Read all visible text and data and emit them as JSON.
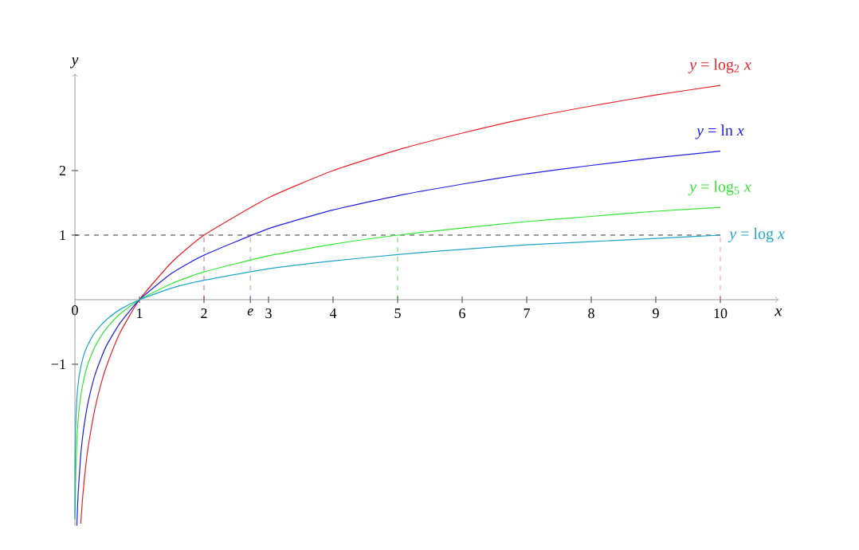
{
  "chart_data": {
    "type": "line",
    "xlabel": "x",
    "ylabel": "y",
    "xlim": [
      0,
      10.9
    ],
    "ylim": [
      -3.5,
      3.5
    ],
    "xticks": [
      {
        "value": 0,
        "label": "0"
      },
      1,
      2,
      {
        "value": 2.718,
        "label": "*e*"
      },
      3,
      4,
      5,
      6,
      7,
      8,
      9,
      10
    ],
    "yticks": [
      {
        "value": -1,
        "label": "−1"
      },
      1,
      2
    ],
    "grid": false,
    "legend": false,
    "marker": "none",
    "line_style": "solid",
    "series": [
      {
        "name": "*y* = log$_{2}$ *x*",
        "color": "#e8202a",
        "x": [
          0.09,
          0.12,
          0.15,
          0.2,
          0.3,
          0.4,
          0.5,
          0.7,
          1,
          1.5,
          2,
          3,
          4,
          5,
          6,
          7,
          8,
          9,
          10
        ],
        "values": [
          -3.47,
          -3.06,
          -2.74,
          -2.32,
          -1.74,
          -1.32,
          -1,
          -0.51,
          0,
          0.58,
          1,
          1.58,
          2,
          2.32,
          2.58,
          2.81,
          3,
          3.17,
          3.32
        ]
      },
      {
        "name": "*y* = ln *x*",
        "color": "#1f1fe0",
        "x": [
          0.03,
          0.05,
          0.09,
          0.12,
          0.15,
          0.2,
          0.3,
          0.4,
          0.5,
          0.7,
          1,
          1.5,
          2,
          3,
          4,
          5,
          6,
          7,
          8,
          9,
          10
        ],
        "values": [
          -3.5,
          -3.0,
          -2.41,
          -2.12,
          -1.9,
          -1.61,
          -1.2,
          -0.92,
          -0.69,
          -0.36,
          0,
          0.41,
          0.69,
          1.1,
          1.39,
          1.61,
          1.79,
          1.95,
          2.08,
          2.2,
          2.3
        ]
      },
      {
        "name": "*y* = log$_{5}$ *x*",
        "color": "#33e633",
        "x": [
          0.005,
          0.01,
          0.03,
          0.06,
          0.09,
          0.12,
          0.15,
          0.2,
          0.3,
          0.4,
          0.5,
          0.7,
          1,
          1.5,
          2,
          3,
          4,
          5,
          6,
          7,
          8,
          9,
          10
        ],
        "values": [
          -3.29,
          -2.86,
          -2.18,
          -1.75,
          -1.5,
          -1.32,
          -1.18,
          -1,
          -0.75,
          -0.57,
          -0.43,
          -0.22,
          0,
          0.25,
          0.43,
          0.68,
          0.86,
          1,
          1.11,
          1.21,
          1.29,
          1.37,
          1.43
        ]
      },
      {
        "name": "*y* = log *x*",
        "color": "#1ea5c8",
        "x": [
          0.0004,
          0.001,
          0.003,
          0.01,
          0.03,
          0.06,
          0.09,
          0.12,
          0.15,
          0.2,
          0.3,
          0.4,
          0.5,
          0.7,
          1,
          1.5,
          2,
          3,
          4,
          5,
          6,
          7,
          8,
          9,
          10
        ],
        "values": [
          -3.4,
          -3,
          -2.52,
          -2,
          -1.52,
          -1.22,
          -1.05,
          -0.92,
          -0.82,
          -0.7,
          -0.52,
          -0.4,
          -0.3,
          -0.15,
          0,
          0.18,
          0.3,
          0.48,
          0.6,
          0.7,
          0.78,
          0.85,
          0.9,
          0.95,
          1
        ]
      }
    ],
    "ref_lines": [
      {
        "axis": "y",
        "value": 1,
        "color": "#000000",
        "line_style": "dashed"
      },
      {
        "axis": "x",
        "value": 2,
        "color": "#c04060",
        "line_style": "dashed"
      },
      {
        "axis": "x",
        "value": 2.718,
        "color": "#8080ff",
        "line_style": "dashed"
      },
      {
        "axis": "x",
        "value": 5,
        "color": "#33cc33",
        "line_style": "dashed"
      },
      {
        "axis": "x",
        "value": 10,
        "color": "#ff80a0",
        "line_style": "dashed"
      }
    ]
  }
}
